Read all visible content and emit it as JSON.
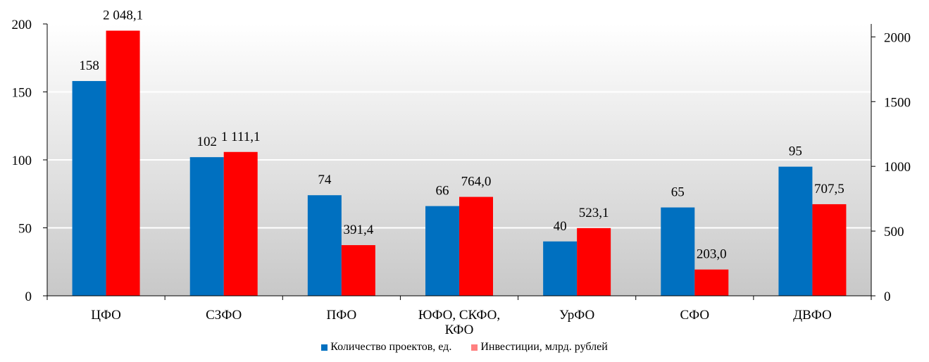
{
  "chart_data": {
    "type": "bar",
    "categories": [
      "ЦФО",
      "СЗФО",
      "ПФО",
      "ЮФО, СКФО, КФО",
      "УрФО",
      "СФО",
      "ДВФО"
    ],
    "category_lines": [
      [
        "ЦФО"
      ],
      [
        "СЗФО"
      ],
      [
        "ПФО"
      ],
      [
        "ЮФО, СКФО,",
        "КФО"
      ],
      [
        "УрФО"
      ],
      [
        "СФО"
      ],
      [
        "ДВФО"
      ]
    ],
    "series": [
      {
        "name": "Количество проектов, ед.",
        "axis": "left",
        "color": "#0070C0",
        "values": [
          158,
          102,
          74,
          66,
          40,
          65,
          95
        ],
        "labels": [
          "158",
          "102",
          "74",
          "66",
          "40",
          "65",
          "95"
        ]
      },
      {
        "name": "Инвестиции, млрд. рублей",
        "axis": "right",
        "color": "#FF0000",
        "legend_color": "#FF8080",
        "values": [
          2048.1,
          1111.1,
          391.4,
          764.0,
          523.1,
          203.0,
          707.5
        ],
        "labels": [
          "2 048,1",
          "1 111,1",
          "391,4",
          "764,0",
          "523,1",
          "203,0",
          "707,5"
        ]
      }
    ],
    "y_left": {
      "range": [
        0,
        200
      ],
      "ticks": [
        "0",
        "50",
        "100",
        "150",
        "200"
      ]
    },
    "y_right": {
      "range": [
        0,
        2100
      ],
      "ticks": [
        "0",
        "500",
        "1000",
        "1500",
        "2000"
      ]
    },
    "grid": true,
    "legend_position": "bottom"
  }
}
